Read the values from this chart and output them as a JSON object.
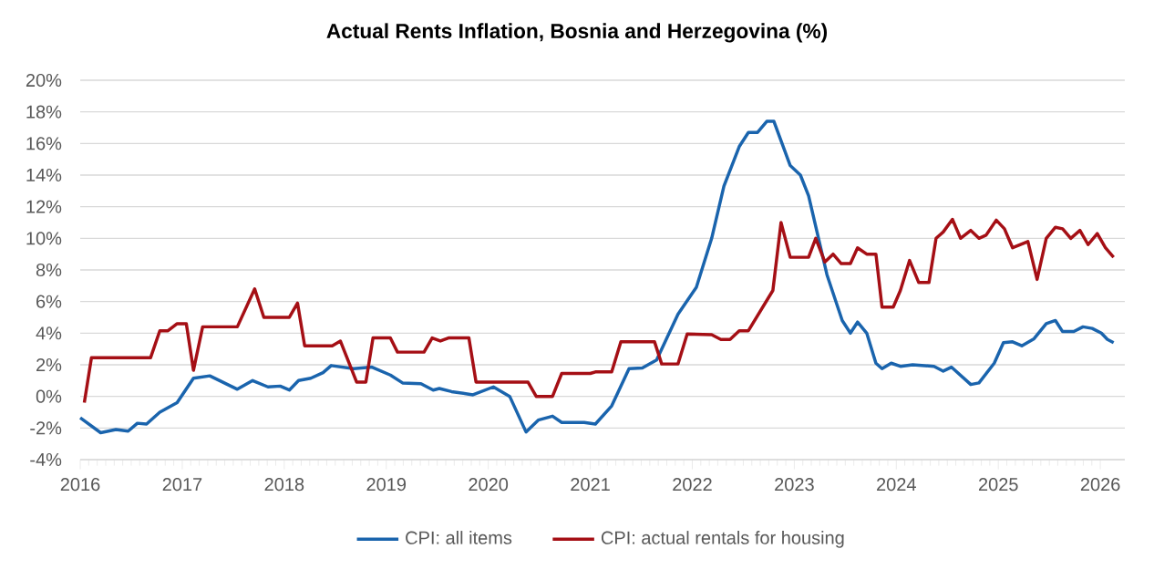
{
  "chart_data": {
    "type": "line",
    "title": "Actual Rents Inflation, Bosnia and Herzegovina (%)",
    "xlim": [
      2016,
      2026.24
    ],
    "xticks": [
      2016,
      2017,
      2018,
      2019,
      2020,
      2021,
      2022,
      2023,
      2024,
      2025,
      2026
    ],
    "ylim": [
      -4,
      20
    ],
    "yticks": [
      {
        "value": -4,
        "label": "-4%"
      },
      {
        "value": -2,
        "label": "-2%"
      },
      {
        "value": 0,
        "label": "0%"
      },
      {
        "value": 2,
        "label": "2%"
      },
      {
        "value": 4,
        "label": "4%"
      },
      {
        "value": 6,
        "label": "6%"
      },
      {
        "value": 8,
        "label": "8%"
      },
      {
        "value": 10,
        "label": "10%"
      },
      {
        "value": 12,
        "label": "12%"
      },
      {
        "value": 14,
        "label": "14%"
      },
      {
        "value": 16,
        "label": "16%"
      },
      {
        "value": 18,
        "label": "18%"
      },
      {
        "value": 20,
        "label": "20%"
      }
    ],
    "grid": "y",
    "legend": "bottom",
    "marker": "none",
    "line_style": "solid",
    "series": [
      {
        "name": "CPI: all items",
        "color": "#1a64ad",
        "x": [
          2016.0,
          2016.2,
          2016.35,
          2016.47,
          2016.56,
          2016.65,
          2016.78,
          2016.95,
          2017.11,
          2017.27,
          2017.54,
          2017.69,
          2017.84,
          2017.96,
          2018.05,
          2018.14,
          2018.26,
          2018.38,
          2018.46,
          2018.68,
          2018.86,
          2019.04,
          2019.16,
          2019.34,
          2019.46,
          2019.52,
          2019.64,
          2019.85,
          2020.05,
          2020.21,
          2020.37,
          2020.49,
          2020.63,
          2020.72,
          2020.94,
          2021.05,
          2021.21,
          2021.38,
          2021.51,
          2021.65,
          2021.86,
          2022.04,
          2022.19,
          2022.31,
          2022.46,
          2022.55,
          2022.64,
          2022.73,
          2022.8,
          2022.96,
          2023.06,
          2023.14,
          2023.32,
          2023.47,
          2023.55,
          2023.62,
          2023.71,
          2023.8,
          2023.86,
          2023.95,
          2024.04,
          2024.16,
          2024.37,
          2024.46,
          2024.54,
          2024.73,
          2024.81,
          2024.96,
          2025.05,
          2025.14,
          2025.23,
          2025.35,
          2025.47,
          2025.56,
          2025.63,
          2025.74,
          2025.83,
          2025.92,
          2026.01,
          2026.07,
          2026.13
        ],
        "values": [
          -1.36,
          -2.3,
          -2.1,
          -2.2,
          -1.7,
          -1.75,
          -1.0,
          -0.4,
          1.15,
          1.3,
          0.45,
          1.0,
          0.6,
          0.65,
          0.4,
          1.0,
          1.15,
          1.5,
          1.95,
          1.75,
          1.85,
          1.35,
          0.85,
          0.8,
          0.4,
          0.5,
          0.3,
          0.1,
          0.6,
          0,
          -2.25,
          -1.5,
          -1.25,
          -1.65,
          -1.65,
          -1.75,
          -0.6,
          1.75,
          1.8,
          2.3,
          5.2,
          6.9,
          10.0,
          13.3,
          15.8,
          16.7,
          16.7,
          17.4,
          17.4,
          14.6,
          14.0,
          12.7,
          7.7,
          4.8,
          4.0,
          4.7,
          4.0,
          2.1,
          1.75,
          2.1,
          1.9,
          2.0,
          1.9,
          1.6,
          1.85,
          0.75,
          0.85,
          2.1,
          3.4,
          3.45,
          3.2,
          3.65,
          4.6,
          4.8,
          4.1,
          4.1,
          4.4,
          4.3,
          4.0,
          3.6,
          3.4
        ]
      },
      {
        "name": "CPI: actual rentals for housing",
        "color": "#a50f15",
        "x": [
          2016.04,
          2016.11,
          2016.69,
          2016.78,
          2016.86,
          2016.95,
          2017.04,
          2017.11,
          2017.2,
          2017.54,
          2017.71,
          2017.8,
          2018.05,
          2018.13,
          2018.2,
          2018.47,
          2018.55,
          2018.71,
          2018.8,
          2018.87,
          2019.04,
          2019.11,
          2019.37,
          2019.45,
          2019.53,
          2019.61,
          2019.81,
          2019.88,
          2020.39,
          2020.47,
          2020.63,
          2020.72,
          2021.0,
          2021.05,
          2021.21,
          2021.3,
          2021.63,
          2021.7,
          2021.86,
          2021.95,
          2022.19,
          2022.28,
          2022.37,
          2022.46,
          2022.55,
          2022.79,
          2022.87,
          2022.96,
          2023.14,
          2023.21,
          2023.3,
          2023.38,
          2023.46,
          2023.55,
          2023.62,
          2023.71,
          2023.8,
          2023.86,
          2023.97,
          2024.04,
          2024.13,
          2024.22,
          2024.32,
          2024.39,
          2024.46,
          2024.55,
          2024.63,
          2024.73,
          2024.81,
          2024.88,
          2024.98,
          2025.06,
          2025.14,
          2025.29,
          2025.38,
          2025.47,
          2025.56,
          2025.63,
          2025.71,
          2025.8,
          2025.88,
          2025.97,
          2026.05,
          2026.13
        ],
        "values": [
          -0.4,
          2.45,
          2.45,
          4.15,
          4.15,
          4.6,
          4.6,
          1.65,
          4.4,
          4.4,
          6.8,
          5.0,
          5.0,
          5.9,
          3.2,
          3.2,
          3.5,
          0.9,
          0.9,
          3.7,
          3.7,
          2.8,
          2.8,
          3.7,
          3.5,
          3.7,
          3.7,
          0.9,
          0.9,
          0,
          0,
          1.45,
          1.45,
          1.55,
          1.55,
          3.45,
          3.45,
          2.05,
          2.05,
          3.95,
          3.9,
          3.6,
          3.6,
          4.15,
          4.15,
          6.7,
          11.0,
          8.8,
          8.8,
          10.0,
          8.5,
          9.0,
          8.4,
          8.4,
          9.4,
          9.0,
          9.0,
          5.65,
          5.65,
          6.7,
          8.6,
          7.2,
          7.2,
          10.0,
          10.4,
          11.2,
          10.0,
          10.5,
          10.0,
          10.2,
          11.15,
          10.6,
          9.4,
          9.8,
          7.4,
          10.0,
          10.7,
          10.6,
          10.0,
          10.5,
          9.6,
          10.3,
          9.4,
          8.8
        ]
      }
    ]
  }
}
